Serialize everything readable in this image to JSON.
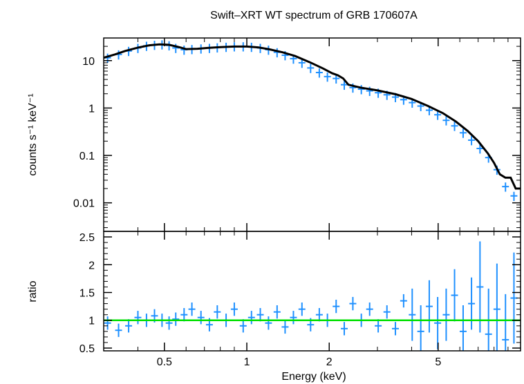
{
  "chart_data": [
    {
      "type": "scatter",
      "title": "Swift–XRT WT spectrum of GRB 170607A",
      "ylabel": "counts s⁻¹ keV⁻¹",
      "yscale": "log",
      "xscale": "log",
      "xlim": [
        0.3,
        10
      ],
      "ylim": [
        0.0025,
        30
      ],
      "yticks": [
        0.01,
        0.1,
        1,
        10
      ],
      "ytick_labels": [
        "0.01",
        "0.1",
        "1",
        "10"
      ],
      "colors": {
        "data": "#1e90ff",
        "model": "#000000"
      },
      "series": [
        {
          "kind": "data",
          "x": [
            0.31,
            0.34,
            0.37,
            0.4,
            0.43,
            0.46,
            0.49,
            0.52,
            0.55,
            0.59,
            0.63,
            0.68,
            0.73,
            0.78,
            0.84,
            0.9,
            0.97,
            1.04,
            1.12,
            1.2,
            1.29,
            1.38,
            1.48,
            1.59,
            1.71,
            1.84,
            1.97,
            2.12,
            2.27,
            2.44,
            2.62,
            2.81,
            3.02,
            3.25,
            3.49,
            3.74,
            4.02,
            4.32,
            4.64,
            4.98,
            5.35,
            5.74,
            6.17,
            6.62,
            7.11,
            7.64,
            8.2,
            8.81,
            9.46
          ],
          "y": [
            11.5,
            13.5,
            16.0,
            18.5,
            20.5,
            21.5,
            22.0,
            21.0,
            18.5,
            17.0,
            17.5,
            18.0,
            18.5,
            19.0,
            19.5,
            20.0,
            20.0,
            19.5,
            18.5,
            17.0,
            15.0,
            13.0,
            11.0,
            9.0,
            7.0,
            5.6,
            4.6,
            4.2,
            3.1,
            2.7,
            2.5,
            2.3,
            2.1,
            1.9,
            1.7,
            1.5,
            1.3,
            1.1,
            0.9,
            0.72,
            0.55,
            0.42,
            0.3,
            0.21,
            0.14,
            0.09,
            0.05,
            0.022,
            0.014
          ]
        },
        {
          "kind": "model",
          "x": [
            0.3,
            0.33,
            0.36,
            0.4,
            0.44,
            0.48,
            0.52,
            0.56,
            0.6,
            0.66,
            0.72,
            0.8,
            0.9,
            1.0,
            1.1,
            1.2,
            1.35,
            1.5,
            1.7,
            1.9,
            2.05,
            2.15,
            2.25,
            2.35,
            2.6,
            3.0,
            3.5,
            4.0,
            4.6,
            5.2,
            5.8,
            6.4,
            7.0,
            7.6,
            8.0,
            8.4,
            8.8,
            9.2,
            9.6,
            10.0
          ],
          "y": [
            11.5,
            13.5,
            16.0,
            18.8,
            21.0,
            22.0,
            21.5,
            19.5,
            17.5,
            17.8,
            18.5,
            19.2,
            19.8,
            19.8,
            19.0,
            17.5,
            15.0,
            12.5,
            9.2,
            6.8,
            5.4,
            4.9,
            4.2,
            3.1,
            2.7,
            2.35,
            1.95,
            1.55,
            1.1,
            0.78,
            0.52,
            0.33,
            0.2,
            0.11,
            0.07,
            0.04,
            0.034,
            0.034,
            0.02,
            0.02
          ]
        }
      ]
    },
    {
      "type": "scatter",
      "xlabel": "Energy (keV)",
      "ylabel": "ratio",
      "xscale": "log",
      "xlim": [
        0.3,
        10
      ],
      "ylim": [
        0.45,
        2.6
      ],
      "xticks": [
        0.5,
        1,
        2,
        5
      ],
      "xtick_labels": [
        "0.5",
        "1",
        "2",
        "5"
      ],
      "yticks": [
        0.5,
        1,
        1.5,
        2,
        2.5
      ],
      "ytick_labels": [
        "0.5",
        "1",
        "1.5",
        "2",
        "2.5"
      ],
      "reference_line": 1,
      "colors": {
        "data": "#1e90ff",
        "reference": "#00e000"
      },
      "series": [
        {
          "kind": "ratio",
          "x": [
            0.31,
            0.34,
            0.37,
            0.4,
            0.43,
            0.46,
            0.49,
            0.52,
            0.55,
            0.59,
            0.63,
            0.68,
            0.73,
            0.78,
            0.84,
            0.9,
            0.97,
            1.04,
            1.12,
            1.2,
            1.29,
            1.38,
            1.48,
            1.59,
            1.71,
            1.84,
            1.97,
            2.12,
            2.27,
            2.44,
            2.62,
            2.81,
            3.02,
            3.25,
            3.49,
            3.74,
            4.02,
            4.32,
            4.64,
            4.98,
            5.35,
            5.74,
            6.17,
            6.62,
            7.11,
            7.64,
            8.2,
            8.81,
            9.46
          ],
          "y": [
            0.95,
            0.82,
            0.9,
            1.05,
            1.0,
            1.08,
            1.0,
            0.95,
            1.02,
            1.1,
            1.2,
            1.05,
            0.92,
            1.15,
            1.0,
            1.2,
            0.9,
            1.05,
            1.1,
            0.95,
            1.15,
            0.88,
            1.05,
            1.2,
            0.92,
            1.1,
            1.0,
            1.25,
            0.85,
            1.3,
            1.0,
            1.2,
            0.9,
            1.15,
            0.85,
            1.35,
            1.1,
            0.8,
            1.25,
            0.95,
            1.1,
            1.45,
            0.8,
            1.3,
            1.6,
            0.75,
            1.2,
            0.65,
            1.4
          ]
        }
      ]
    }
  ]
}
